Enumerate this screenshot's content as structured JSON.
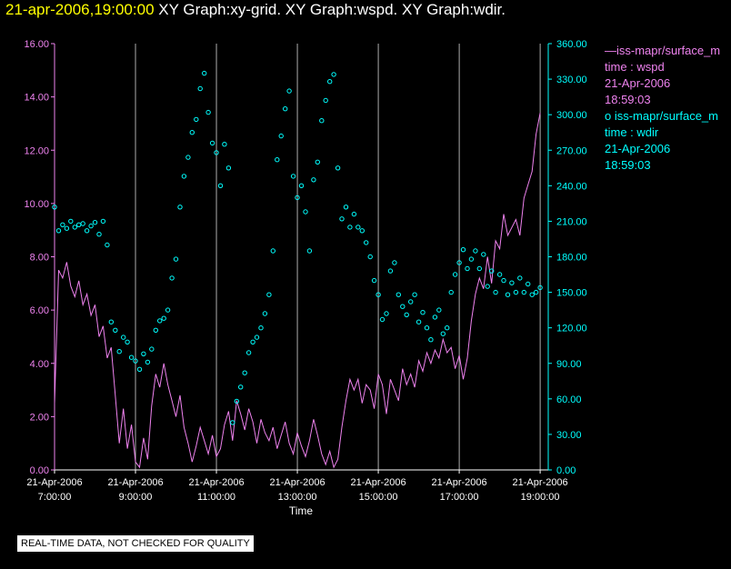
{
  "header": {
    "timestamp": "21-apr-2006,19:00:00",
    "graphs": "XY Graph:xy-grid.  XY Graph:wspd.  XY Graph:wdir."
  },
  "legend": {
    "wspd": {
      "line1": "—iss-mapr/surface_m",
      "line2": "time : wspd",
      "line3": "21-Apr-2006",
      "line4": "18:59:03"
    },
    "wdir": {
      "line1": "o  iss-mapr/surface_m",
      "line2": "time : wdir",
      "line3": "21-Apr-2006",
      "line4": "18:59:03"
    }
  },
  "footer": {
    "qc_note": "REAL-TIME DATA, NOT CHECKED FOR QUALITY"
  },
  "colors": {
    "wspd": "#ee82ee",
    "wdir": "#00ffff",
    "grid": "#ffffff",
    "title_time": "#ffff00",
    "background": "#000000"
  },
  "chart_data": {
    "type": "line+scatter",
    "xlabel": "Time",
    "x_units": "hours (local day 21-Apr-2006)",
    "xlim": [
      7.0,
      19.2
    ],
    "x_tick_values": [
      7,
      9,
      11,
      13,
      15,
      17,
      19
    ],
    "x_tick_labels": [
      [
        "21-Apr-2006",
        "7:00:00"
      ],
      [
        "21-Apr-2006",
        "9:00:00"
      ],
      [
        "21-Apr-2006",
        "11:00:00"
      ],
      [
        "21-Apr-2006",
        "13:00:00"
      ],
      [
        "21-Apr-2006",
        "15:00:00"
      ],
      [
        "21-Apr-2006",
        "17:00:00"
      ],
      [
        "21-Apr-2006",
        "19:00:00"
      ]
    ],
    "vertical_grid_hours": [
      9,
      11,
      13,
      15,
      17,
      19
    ],
    "y_left": {
      "name": "wspd",
      "ylim": [
        0,
        16
      ],
      "ticks": [
        0,
        2,
        4,
        6,
        8,
        10,
        12,
        14,
        16
      ],
      "tick_labels": [
        "0.00",
        "2.00",
        "4.00",
        "6.00",
        "8.00",
        "10.00",
        "12.00",
        "14.00",
        "16.00"
      ]
    },
    "y_right": {
      "name": "wdir",
      "ylim": [
        0,
        360
      ],
      "ticks": [
        0,
        30,
        60,
        90,
        120,
        150,
        180,
        210,
        240,
        270,
        300,
        330,
        360
      ],
      "tick_labels": [
        "0.00",
        "30.00",
        "60.00",
        "90.00",
        "120.00",
        "150.00",
        "180.00",
        "210.00",
        "240.00",
        "270.00",
        "300.00",
        "330.00",
        "360.00"
      ]
    },
    "series": [
      {
        "name": "wspd",
        "axis": "left",
        "style": "line",
        "x": [
          7.0,
          7.1,
          7.2,
          7.3,
          7.4,
          7.5,
          7.6,
          7.7,
          7.8,
          7.9,
          8.0,
          8.1,
          8.2,
          8.3,
          8.4,
          8.5,
          8.6,
          8.7,
          8.8,
          8.9,
          9.0,
          9.1,
          9.2,
          9.3,
          9.4,
          9.5,
          9.6,
          9.7,
          9.8,
          9.9,
          10.0,
          10.1,
          10.2,
          10.3,
          10.4,
          10.5,
          10.6,
          10.7,
          10.8,
          10.9,
          11.0,
          11.1,
          11.2,
          11.3,
          11.4,
          11.5,
          11.6,
          11.7,
          11.8,
          11.9,
          12.0,
          12.1,
          12.2,
          12.3,
          12.4,
          12.5,
          12.6,
          12.7,
          12.8,
          12.9,
          13.0,
          13.1,
          13.2,
          13.3,
          13.4,
          13.5,
          13.6,
          13.7,
          13.8,
          13.9,
          14.0,
          14.1,
          14.2,
          14.3,
          14.4,
          14.5,
          14.6,
          14.7,
          14.8,
          14.9,
          15.0,
          15.1,
          15.2,
          15.3,
          15.4,
          15.5,
          15.6,
          15.7,
          15.8,
          15.9,
          16.0,
          16.1,
          16.2,
          16.3,
          16.4,
          16.5,
          16.6,
          16.7,
          16.8,
          16.9,
          17.0,
          17.1,
          17.2,
          17.3,
          17.4,
          17.5,
          17.6,
          17.7,
          17.8,
          17.9,
          18.0,
          18.1,
          18.2,
          18.3,
          18.4,
          18.5,
          18.6,
          18.7,
          18.8,
          18.9,
          19.0
        ],
        "y": [
          2.5,
          7.5,
          7.2,
          7.8,
          6.9,
          6.5,
          7.1,
          6.2,
          6.6,
          5.8,
          6.2,
          5.0,
          5.4,
          4.2,
          4.6,
          2.8,
          1.0,
          2.3,
          0.8,
          1.7,
          0.3,
          0.1,
          1.2,
          0.4,
          2.4,
          3.6,
          3.1,
          4.0,
          3.2,
          2.6,
          2.0,
          2.8,
          1.6,
          1.0,
          0.3,
          0.9,
          1.6,
          1.1,
          0.6,
          1.3,
          0.5,
          0.8,
          1.7,
          2.2,
          1.1,
          2.6,
          2.1,
          1.5,
          2.3,
          1.8,
          1.0,
          1.9,
          1.4,
          1.1,
          1.6,
          0.8,
          1.3,
          1.8,
          1.0,
          0.6,
          1.4,
          0.9,
          0.5,
          1.1,
          1.9,
          1.3,
          0.6,
          0.2,
          0.7,
          0.1,
          0.4,
          1.6,
          2.6,
          3.4,
          3.0,
          3.4,
          2.5,
          3.2,
          3.0,
          2.3,
          3.6,
          3.2,
          2.1,
          3.4,
          3.0,
          2.6,
          3.8,
          3.2,
          3.6,
          3.1,
          4.1,
          3.7,
          4.4,
          4.0,
          4.5,
          4.2,
          4.9,
          4.4,
          4.6,
          3.8,
          4.3,
          3.4,
          4.2,
          5.6,
          6.6,
          7.2,
          6.8,
          8.0,
          7.0,
          8.6,
          8.3,
          9.6,
          8.8,
          9.1,
          9.4,
          8.8,
          10.2,
          10.7,
          11.2,
          12.6,
          13.4
        ]
      },
      {
        "name": "wdir",
        "axis": "right",
        "style": "markers",
        "x": [
          7.0,
          7.1,
          7.2,
          7.3,
          7.4,
          7.5,
          7.6,
          7.7,
          7.8,
          7.9,
          8.0,
          8.1,
          8.2,
          8.3,
          8.4,
          8.5,
          8.6,
          8.7,
          8.8,
          8.9,
          9.0,
          9.1,
          9.2,
          9.3,
          9.4,
          9.5,
          9.6,
          9.7,
          9.8,
          9.9,
          10.0,
          10.1,
          10.2,
          10.3,
          10.4,
          10.5,
          10.6,
          10.7,
          10.8,
          10.9,
          11.0,
          11.1,
          11.2,
          11.3,
          11.4,
          11.5,
          11.6,
          11.7,
          11.8,
          11.9,
          12.0,
          12.1,
          12.2,
          12.3,
          12.4,
          12.5,
          12.6,
          12.7,
          12.8,
          12.9,
          13.0,
          13.1,
          13.2,
          13.3,
          13.4,
          13.5,
          13.6,
          13.7,
          13.8,
          13.9,
          14.0,
          14.1,
          14.2,
          14.3,
          14.4,
          14.5,
          14.6,
          14.7,
          14.8,
          14.9,
          15.0,
          15.1,
          15.2,
          15.3,
          15.4,
          15.5,
          15.6,
          15.7,
          15.8,
          15.9,
          16.0,
          16.1,
          16.2,
          16.3,
          16.4,
          16.5,
          16.6,
          16.7,
          16.8,
          16.9,
          17.0,
          17.1,
          17.2,
          17.3,
          17.4,
          17.5,
          17.6,
          17.7,
          17.8,
          17.9,
          18.0,
          18.1,
          18.2,
          18.3,
          18.4,
          18.5,
          18.6,
          18.7,
          18.8,
          18.9,
          19.0
        ],
        "y": [
          222,
          202,
          207,
          204,
          210,
          205,
          207,
          208,
          202,
          206,
          209,
          199,
          210,
          190,
          125,
          118,
          100,
          112,
          108,
          95,
          92,
          85,
          98,
          91,
          102,
          118,
          126,
          128,
          135,
          162,
          178,
          222,
          248,
          264,
          285,
          296,
          322,
          335,
          302,
          276,
          268,
          240,
          275,
          255,
          40,
          58,
          70,
          82,
          99,
          108,
          112,
          120,
          132,
          148,
          185,
          262,
          282,
          305,
          320,
          248,
          230,
          240,
          218,
          185,
          245,
          260,
          295,
          312,
          328,
          334,
          255,
          212,
          222,
          205,
          216,
          205,
          202,
          192,
          180,
          160,
          148,
          127,
          132,
          168,
          175,
          148,
          138,
          131,
          142,
          148,
          125,
          133,
          120,
          110,
          129,
          135,
          115,
          120,
          150,
          165,
          175,
          186,
          170,
          178,
          185,
          170,
          182,
          155,
          168,
          150,
          165,
          160,
          148,
          158,
          150,
          162,
          150,
          157,
          148,
          150,
          154
        ]
      }
    ]
  }
}
